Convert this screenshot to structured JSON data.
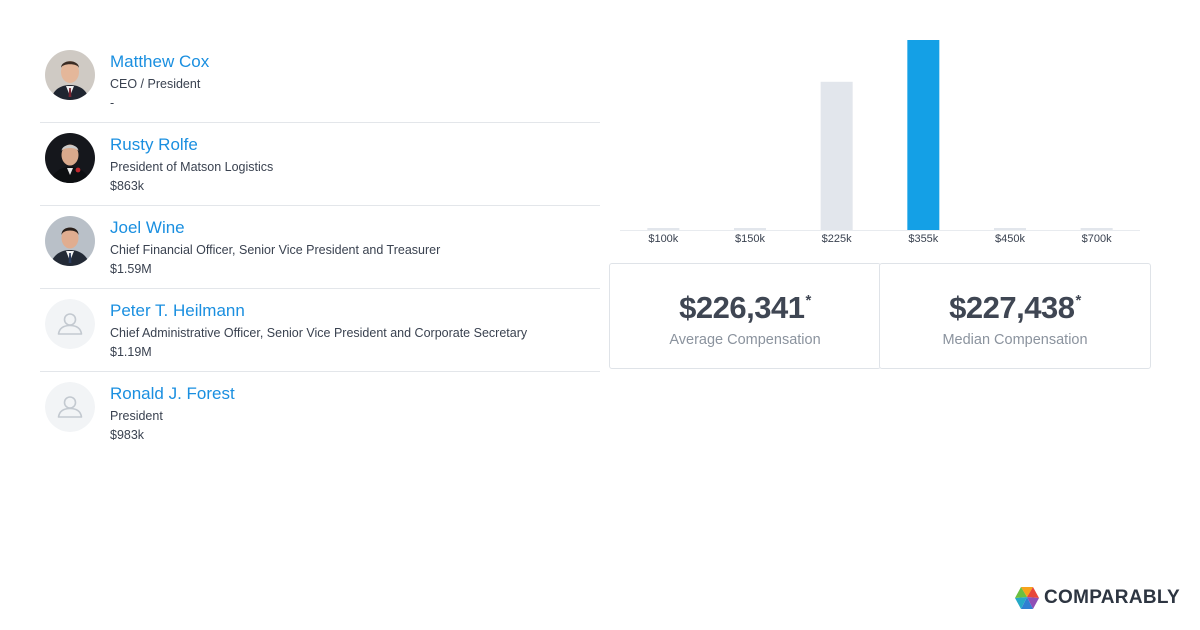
{
  "executives": [
    {
      "name": "Matthew Cox",
      "title": "CEO / President",
      "salary": "-",
      "avatar": "photo"
    },
    {
      "name": "Rusty Rolfe",
      "title": "President of Matson Logistics",
      "salary": "$863k",
      "avatar": "photo"
    },
    {
      "name": "Joel Wine",
      "title": "Chief Financial Officer, Senior Vice President and Treasurer",
      "salary": "$1.59M",
      "avatar": "photo"
    },
    {
      "name": "Peter T. Heilmann",
      "title": "Chief Administrative Officer, Senior Vice President and Corporate Secretary",
      "salary": "$1.19M",
      "avatar": "user-placeholder-icon"
    },
    {
      "name": "Ronald J. Forest",
      "title": "President",
      "salary": "$983k",
      "avatar": "user-placeholder-icon"
    }
  ],
  "chart_data": {
    "type": "bar",
    "categories": [
      "$100k",
      "$150k",
      "$225k",
      "$355k",
      "$450k",
      "$700k"
    ],
    "values": [
      0,
      0,
      78,
      100,
      0,
      0
    ],
    "highlight_index": 3,
    "colors": {
      "bar": "#e2e6ec",
      "highlight": "#14a0e6",
      "baseline": "#e8ebef"
    },
    "ylim": [
      0,
      100
    ],
    "grid": false,
    "title": "",
    "xlabel": "",
    "ylabel": ""
  },
  "stats": {
    "average": {
      "value": "$226,341",
      "marker": "*",
      "label": "Average Compensation"
    },
    "median": {
      "value": "$227,438",
      "marker": "*",
      "label": "Median Compensation"
    }
  },
  "brand": {
    "name": "COMPARABLY",
    "logo": "comparably-logo-icon"
  }
}
